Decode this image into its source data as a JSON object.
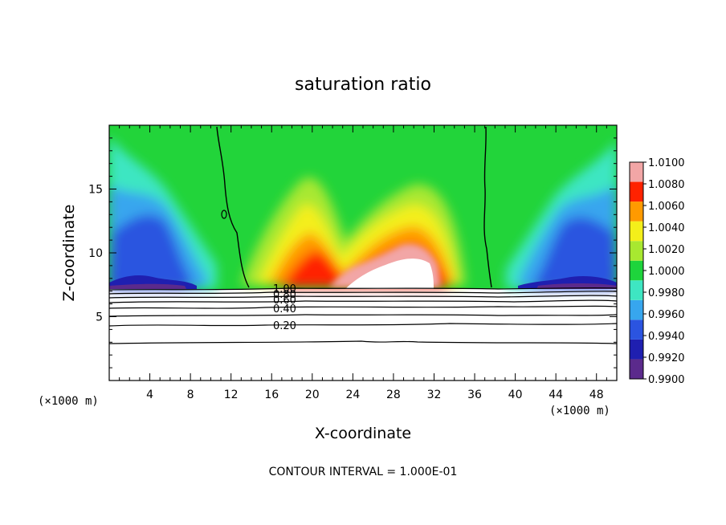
{
  "chart_data": {
    "type": "heatmap",
    "title": "saturation ratio",
    "xlabel": "X-coordinate",
    "ylabel": "Z-coordinate",
    "x_unit_left": "(×1000 m)",
    "x_unit_right": "(×1000 m)",
    "xlim": [
      0,
      50
    ],
    "ylim": [
      0,
      20
    ],
    "x_ticks": [
      4,
      8,
      12,
      16,
      20,
      24,
      28,
      32,
      36,
      40,
      44,
      48
    ],
    "y_ticks": [
      5,
      10,
      15
    ],
    "colorbar": {
      "min": 0.99,
      "max": 1.01,
      "levels": [
        "0.9900",
        "0.9920",
        "0.9940",
        "0.9960",
        "0.9980",
        "1.0000",
        "1.0020",
        "1.0040",
        "1.0060",
        "1.0080",
        "1.0100"
      ],
      "colors": [
        "#5b2a8c",
        "#1f1fb0",
        "#2b54e0",
        "#37a6ee",
        "#3ee6c2",
        "#1ed43c",
        "#a8e830",
        "#f4ef1a",
        "#ff9a00",
        "#ff2200",
        "#f2a6a6"
      ]
    },
    "contour_lines": {
      "interval": 0.1,
      "levels": [
        0.2,
        0.3,
        0.4,
        0.5,
        0.6,
        0.7,
        0.8,
        0.9,
        1.0
      ],
      "labels": [
        "0.20",
        "0.40",
        "0.60",
        "0.80",
        "1.00"
      ]
    },
    "region_notes": {
      "blue_low_region": "left and right sides below z≈15, x<12 and x>38",
      "red_supersaturated_region": "x≈16–36, z≈7–13",
      "white_clear_area": "below z≈7.3"
    }
  },
  "footer": {
    "contour_interval_text": "CONTOUR INTERVAL = 1.000E-01"
  }
}
